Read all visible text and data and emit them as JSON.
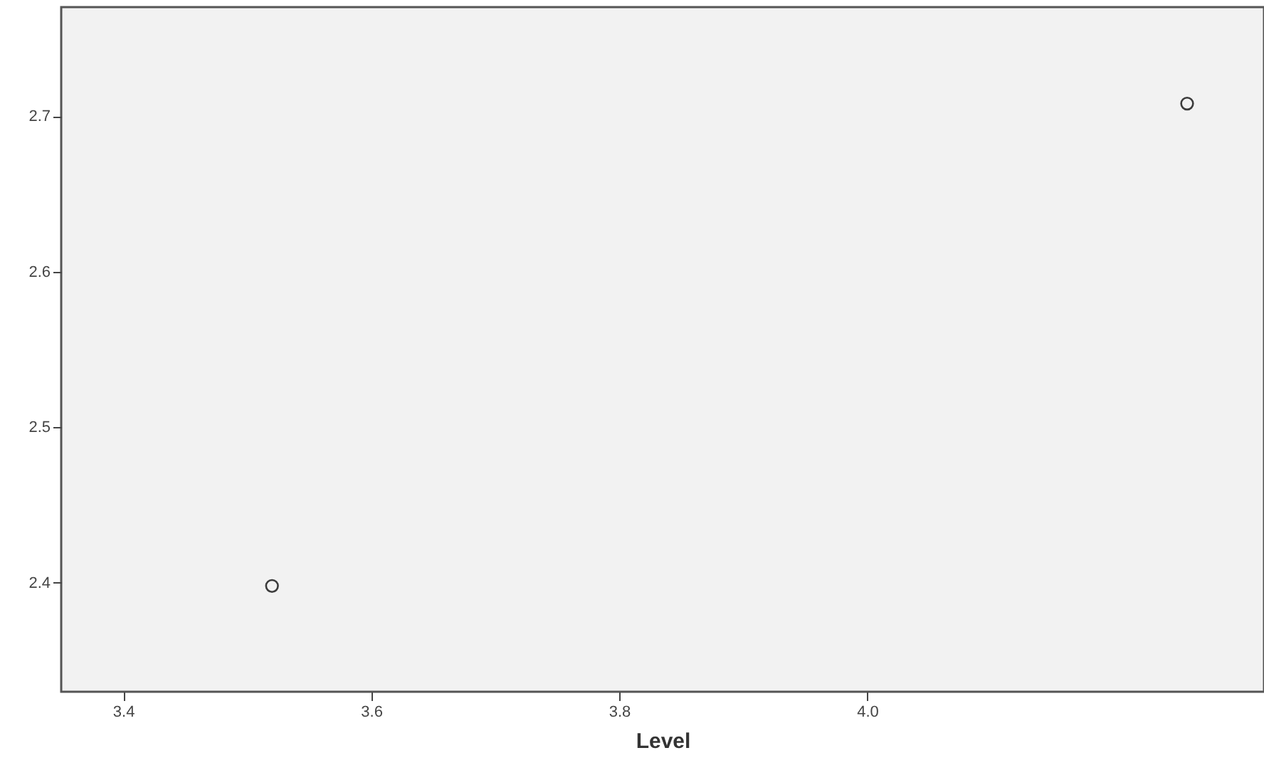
{
  "chart_data": {
    "type": "scatter",
    "xlabel": "Level",
    "series": [
      {
        "color": "#3c3c3c",
        "x": [
          3.52,
          4.258
        ],
        "values": [
          2.398,
          2.708
        ]
      }
    ],
    "xlim": [
      3.35,
      4.32
    ],
    "ylim": [
      2.33,
      2.77
    ],
    "xticks": [
      {
        "value": 3.4,
        "label": "3.4"
      },
      {
        "value": 3.6,
        "label": "3.6"
      },
      {
        "value": 3.8,
        "label": "3.8"
      },
      {
        "value": 4.0,
        "label": "4.0"
      }
    ],
    "yticks": [
      {
        "value": 2.4,
        "label": "2.4"
      },
      {
        "value": 2.5,
        "label": "2.5"
      },
      {
        "value": 2.6,
        "label": "2.6"
      },
      {
        "value": 2.7,
        "label": "2.7"
      }
    ],
    "grid": false,
    "marker": "circle"
  }
}
